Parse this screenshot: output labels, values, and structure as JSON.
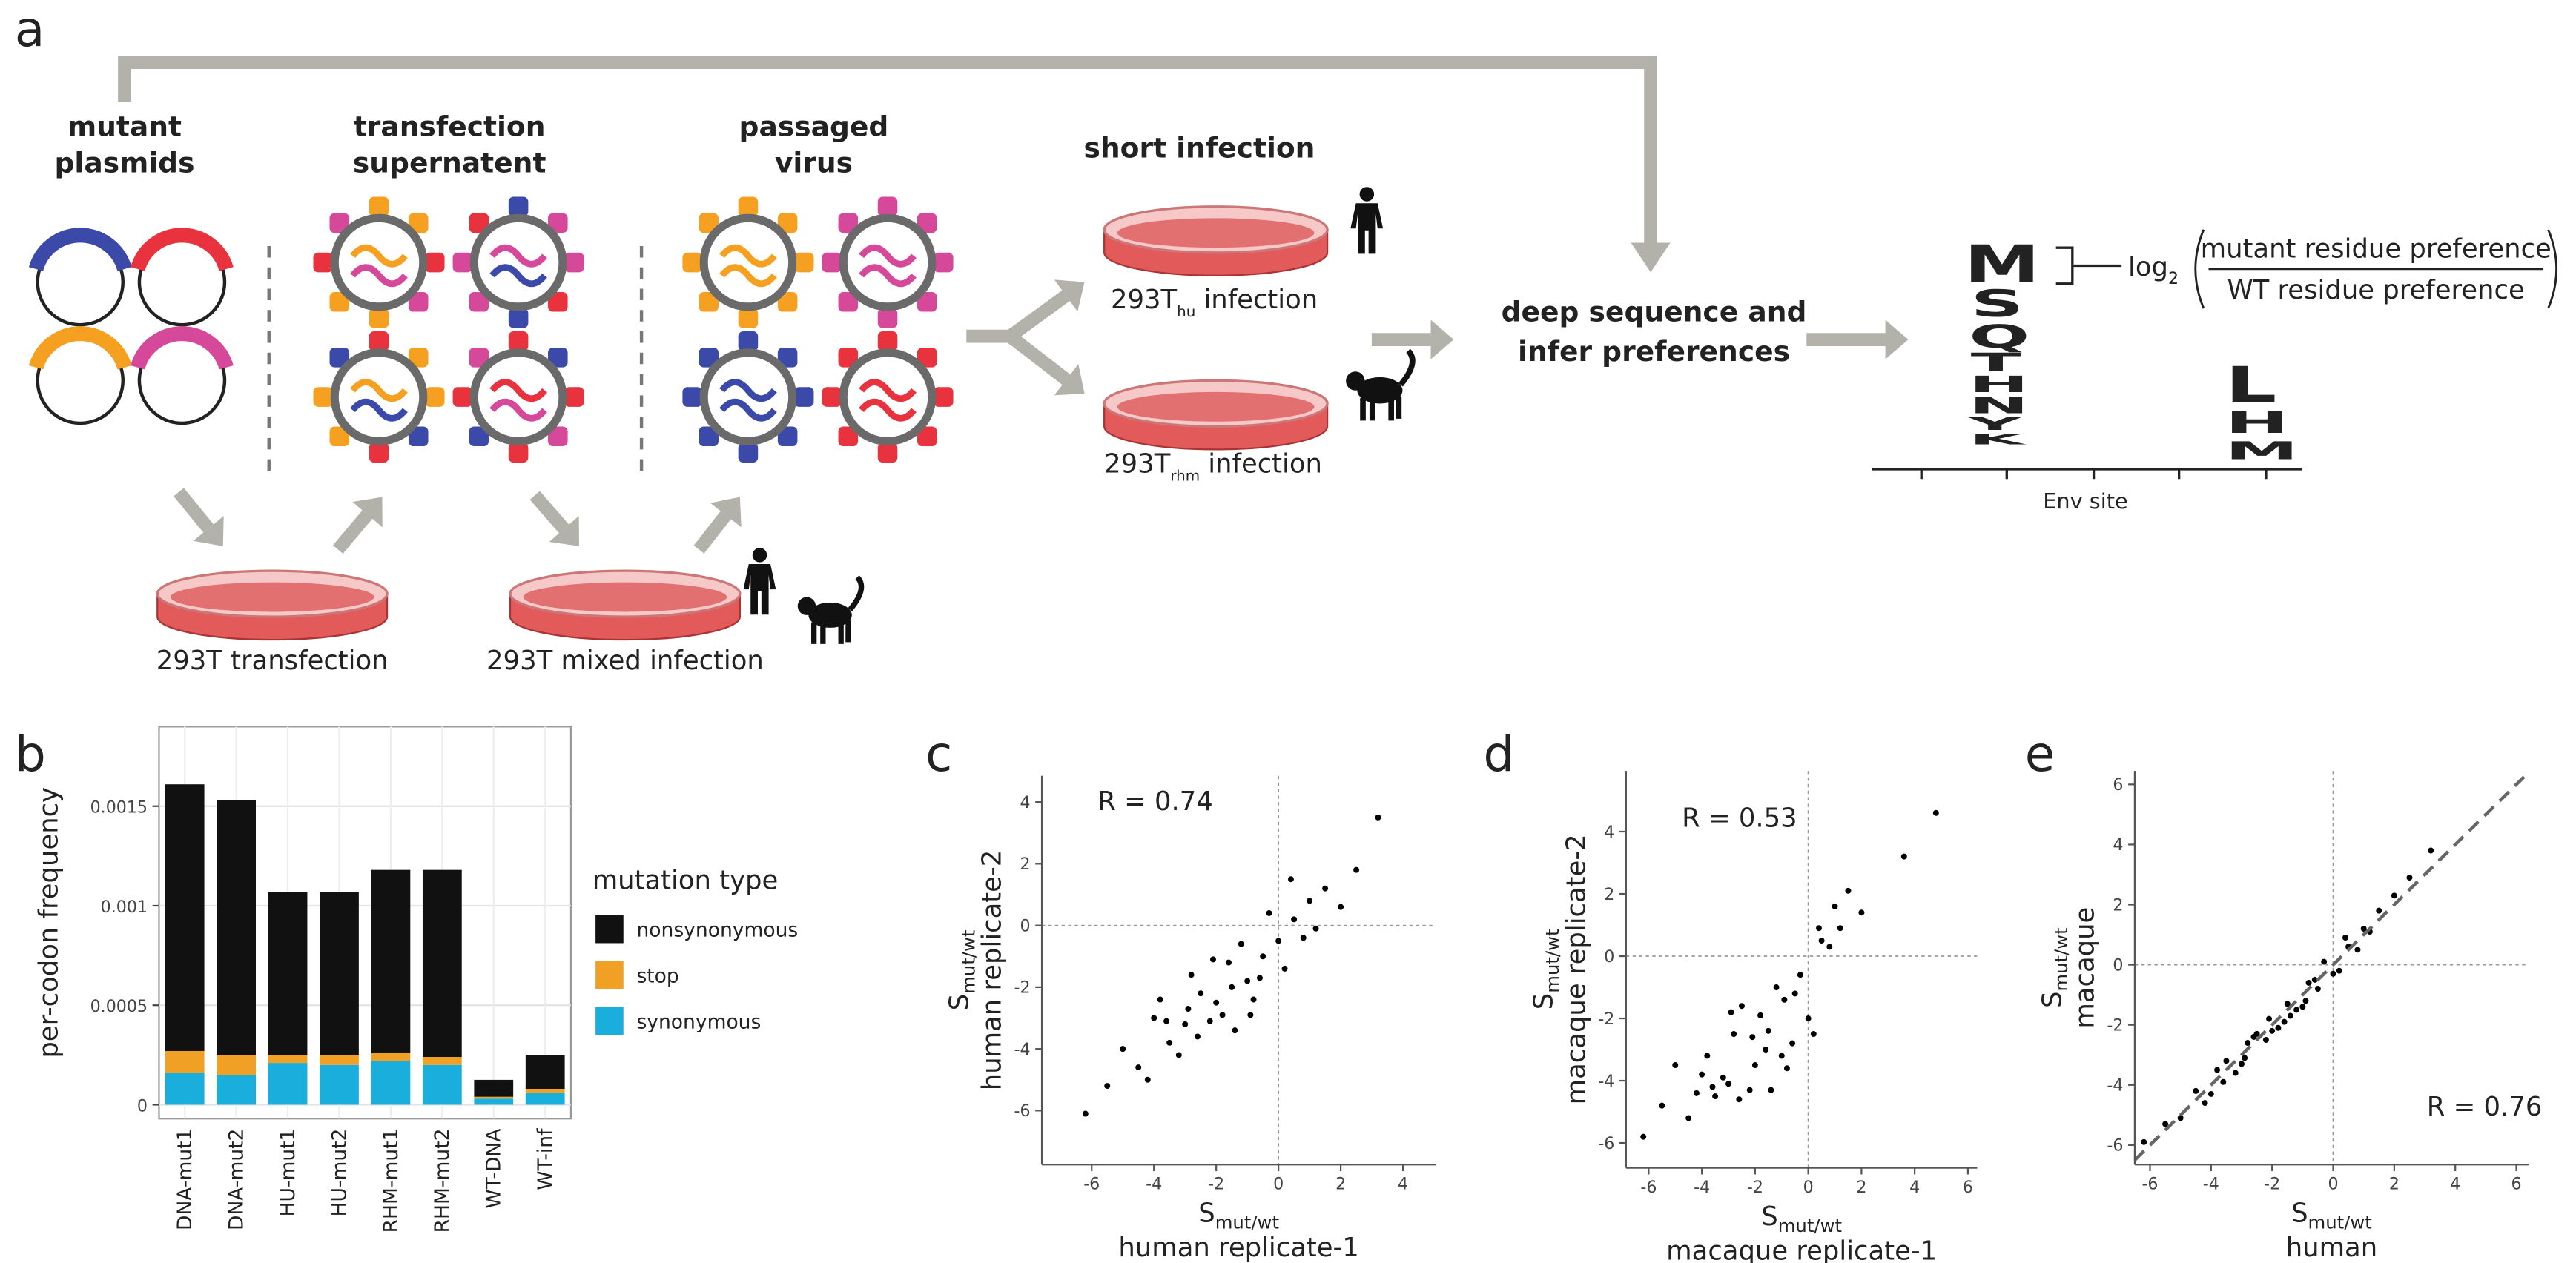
{
  "diagram": {
    "panel_labels": [
      "a",
      "b",
      "c",
      "d",
      "e"
    ],
    "mutant_plasmids": [
      "mutant",
      "plasmids"
    ],
    "transfection_supernatent": [
      "transfection",
      "supernatent"
    ],
    "passaged_virus": [
      "passaged",
      "virus"
    ],
    "short_infection": "short infection",
    "hu_infection": {
      "main": "293T",
      "sub": "hu",
      "rest": "infection"
    },
    "rhm_infection": {
      "main": "293T",
      "sub": "rhm",
      "rest": "infection"
    },
    "transfection_dish": "293T transfection",
    "mixed_dish": "293T mixed infection",
    "deep_sequence": [
      "deep sequence and",
      "infer preferences"
    ],
    "formula": {
      "log": "log",
      "base": "2",
      "numerator": "mutant residue preference",
      "denominator": "WT residue preference"
    },
    "logo": [
      {
        "letters": [
          "M",
          "S",
          "Q",
          "T",
          "H",
          "N",
          "Y",
          "K"
        ]
      },
      {
        "letters": [
          "L",
          "H",
          "M"
        ]
      }
    ],
    "logo_axis": "Env site"
  },
  "chart_data": [
    {
      "type": "bar",
      "ylabel": "per-codon frequency",
      "legend_title": "mutation type",
      "categories": [
        "DNA-mut1",
        "DNA-mut2",
        "HU-mut1",
        "HU-mut2",
        "RHM-mut1",
        "RHM-mut2",
        "WT-DNA",
        "WT-inf"
      ],
      "series": [
        {
          "name": "nonsynonymous",
          "color": "#111111",
          "values": [
            0.00134,
            0.00128,
            0.00082,
            0.00082,
            0.00092,
            0.00094,
            8.5e-05,
            0.00017
          ]
        },
        {
          "name": "stop",
          "color": "#f0a025",
          "values": [
            0.00011,
            0.0001,
            4e-05,
            5e-05,
            4e-05,
            4e-05,
            1e-05,
            2e-05
          ]
        },
        {
          "name": "synonymous",
          "color": "#1aaedd",
          "values": [
            0.00016,
            0.00015,
            0.00021,
            0.0002,
            0.00022,
            0.0002,
            3e-05,
            6e-05
          ]
        }
      ],
      "stacked": true,
      "ylim": [
        -7e-05,
        0.0019
      ],
      "yticks": [
        0,
        0.0005,
        0.001,
        0.0015
      ],
      "grid": true,
      "legend": "right"
    },
    {
      "type": "scatter",
      "annotation": "R = 0.74",
      "xlabel_symbol": "S",
      "xlabel_sub": "mut/wt",
      "xlabel": "human replicate-1",
      "ylabel_symbol": "S",
      "ylabel_sub": "mut/wt",
      "ylabel": "human replicate-2",
      "xlim": [
        -7.6,
        5.05
      ],
      "ylim": [
        -7.75,
        4.85
      ],
      "xticks": [
        -6,
        -4,
        -2,
        0,
        2,
        4
      ],
      "yticks": [
        -6,
        -4,
        -2,
        0,
        2,
        4
      ],
      "reference_lines": {
        "x": 0,
        "y": 0
      },
      "color": "#000000",
      "x": [
        -2,
        -1.5,
        -3,
        -0.5,
        0.5,
        -1,
        -2.5,
        -3.5,
        -4,
        0,
        1,
        -2.2,
        -1.2,
        -0.8,
        -2.8,
        -3.2,
        -4.5,
        -5,
        1.5,
        2,
        0.2,
        -1.8,
        -2.6,
        -0.3,
        -1.6,
        -3.8,
        -2.1,
        -0.9,
        0.8,
        -4.2,
        2.5,
        3.2,
        -6.2,
        -1.4,
        -2.9,
        0.4,
        -5.5,
        -0.6,
        -3.6,
        1.2
      ],
      "y": [
        -2.5,
        -2,
        -3.2,
        -1,
        0.2,
        -1.8,
        -2.2,
        -3.8,
        -3,
        -0.5,
        0.8,
        -3.1,
        -0.6,
        -2.4,
        -1.6,
        -4.2,
        -4.6,
        -4,
        1.2,
        0.6,
        -1.4,
        -2.9,
        -3.6,
        0.4,
        -1.2,
        -2.4,
        -1.1,
        -2.9,
        -0.4,
        -5,
        1.8,
        3.5,
        -6.1,
        -3.4,
        -2.7,
        1.5,
        -5.2,
        -1.7,
        -3.1,
        -0.1
      ]
    },
    {
      "type": "scatter",
      "annotation": "R = 0.53",
      "xlabel_symbol": "S",
      "xlabel_sub": "mut/wt",
      "xlabel": "macaque replicate-1",
      "ylabel_symbol": "S",
      "ylabel_sub": "mut/wt",
      "ylabel": "macaque replicate-2",
      "xlim": [
        -6.85,
        6.35
      ],
      "ylim": [
        -6.8,
        5.95
      ],
      "xticks": [
        -6,
        -4,
        -2,
        0,
        2,
        4,
        6
      ],
      "yticks": [
        -6,
        -4,
        -2,
        0,
        2,
        4
      ],
      "reference_lines": {
        "x": 0,
        "y": 0
      },
      "color": "#000000",
      "x": [
        -2,
        -1.5,
        -3,
        -0.5,
        0.5,
        -1,
        -2.5,
        -3.5,
        -4,
        0,
        1,
        -2.2,
        -1.2,
        -0.8,
        -2.8,
        -3.2,
        -4.5,
        -5,
        1.5,
        2,
        0.2,
        -1.8,
        -2.6,
        -0.3,
        -1.6,
        -3.8,
        -2.1,
        -0.9,
        0.8,
        -4.2,
        3.6,
        4.8,
        -6.2,
        -1.4,
        -2.9,
        0.4,
        -5.5,
        -0.6,
        -3.6,
        1.2
      ],
      "y": [
        -3.5,
        -2.4,
        -4.1,
        -1.2,
        0.5,
        -3.2,
        -1.6,
        -4.5,
        -3.8,
        -2,
        1.6,
        -4.3,
        -1,
        -3.6,
        -2.5,
        -3.9,
        -5.2,
        -3.5,
        2.1,
        1.4,
        -2.5,
        -1.9,
        -4.6,
        -0.6,
        -3,
        -3.2,
        -2.6,
        -1.4,
        0.3,
        -4.4,
        3.2,
        4.6,
        -5.8,
        -4.3,
        -1.8,
        0.9,
        -4.8,
        -2.8,
        -4.2,
        0.9
      ]
    },
    {
      "type": "scatter",
      "annotation": "R = 0.76",
      "xlabel_symbol": "S",
      "xlabel_sub": "mut/wt",
      "xlabel": "human",
      "ylabel_symbol": "S",
      "ylabel_sub": "mut/wt",
      "ylabel": "macaque",
      "xlim": [
        -6.5,
        6.4
      ],
      "ylim": [
        -6.65,
        6.45
      ],
      "xticks": [
        -6,
        -4,
        -2,
        0,
        2,
        4,
        6
      ],
      "yticks": [
        -6,
        -4,
        -2,
        0,
        2,
        4,
        6
      ],
      "reference_lines": {
        "x": 0,
        "y": 0
      },
      "diagonal": true,
      "color": "#000000",
      "x": [
        -2,
        -1.5,
        -3,
        -0.5,
        0.5,
        -1,
        -2.5,
        -3.5,
        -4,
        0,
        1,
        -2.2,
        -1.2,
        -0.8,
        -2.8,
        -3.2,
        -4.5,
        -5,
        1.5,
        2,
        0.2,
        -1.8,
        -2.6,
        -0.3,
        -1.6,
        -3.8,
        -2.1,
        -0.9,
        0.8,
        -4.2,
        2.5,
        3.2,
        -6.2,
        -1.4,
        -2.9,
        0.4,
        -5.5,
        -0.6,
        -3.6,
        1.2
      ],
      "y": [
        -2.2,
        -1.3,
        -3.3,
        -0.8,
        0.6,
        -1.4,
        -2.3,
        -3.2,
        -4.3,
        -0.3,
        1.2,
        -2.5,
        -1.5,
        -0.6,
        -2.6,
        -3.6,
        -4.2,
        -5.1,
        1.8,
        2.3,
        -0.2,
        -2.1,
        -2.4,
        0.1,
        -1.9,
        -3.5,
        -1.8,
        -1.2,
        0.5,
        -4.6,
        2.9,
        3.8,
        -5.9,
        -1.7,
        -3.1,
        0.9,
        -5.3,
        -0.5,
        -3.9,
        1.1
      ]
    }
  ]
}
